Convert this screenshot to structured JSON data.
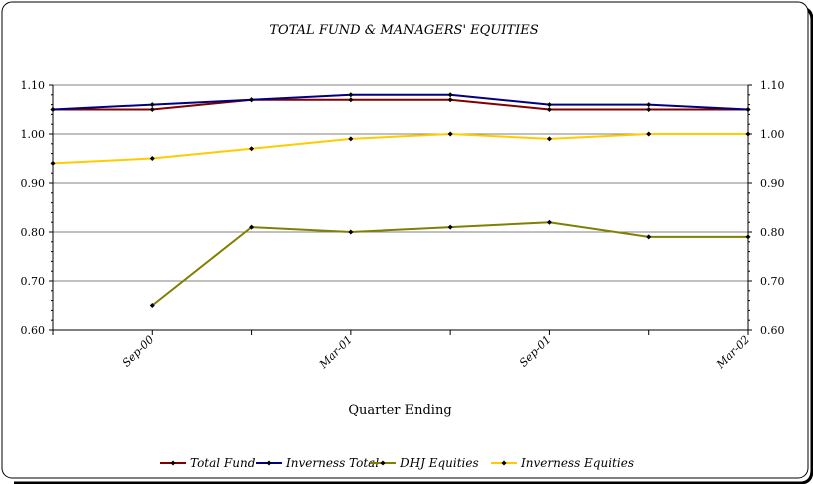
{
  "chart_data": {
    "type": "line",
    "title": "TOTAL FUND & MANAGERS' EQUITIES",
    "xlabel": "Quarter Ending",
    "ylabel": "",
    "ylim": [
      0.6,
      1.1
    ],
    "y_ticks": [
      "0.60",
      "0.70",
      "0.80",
      "0.90",
      "1.00",
      "1.10"
    ],
    "y_ticks_values": [
      0.6,
      0.7,
      0.8,
      0.9,
      1.0,
      1.1
    ],
    "x_points": 8,
    "x_tick_labels": [
      {
        "index": 1,
        "label": "Sep-00"
      },
      {
        "index": 3,
        "label": "Mar-01"
      },
      {
        "index": 5,
        "label": "Sep-01"
      },
      {
        "index": 7,
        "label": "Mar-02"
      }
    ],
    "grid": true,
    "secondary_y_axis": true,
    "legend_position": "bottom",
    "series": [
      {
        "name": "Total Fund",
        "color": "#800000",
        "values": [
          1.05,
          1.05,
          1.07,
          1.07,
          1.07,
          1.05,
          1.05,
          1.05
        ]
      },
      {
        "name": "Inverness Total",
        "color": "#000080",
        "values": [
          1.05,
          1.06,
          1.07,
          1.08,
          1.08,
          1.06,
          1.06,
          1.05
        ]
      },
      {
        "name": "DHJ Equities",
        "color": "#808000",
        "values": [
          null,
          0.65,
          0.81,
          0.8,
          0.81,
          0.82,
          0.79,
          0.79
        ]
      },
      {
        "name": "Inverness Equities",
        "color": "#FFCC00",
        "values": [
          0.94,
          0.95,
          0.97,
          0.99,
          1.0,
          0.99,
          1.0,
          1.0
        ]
      }
    ]
  }
}
